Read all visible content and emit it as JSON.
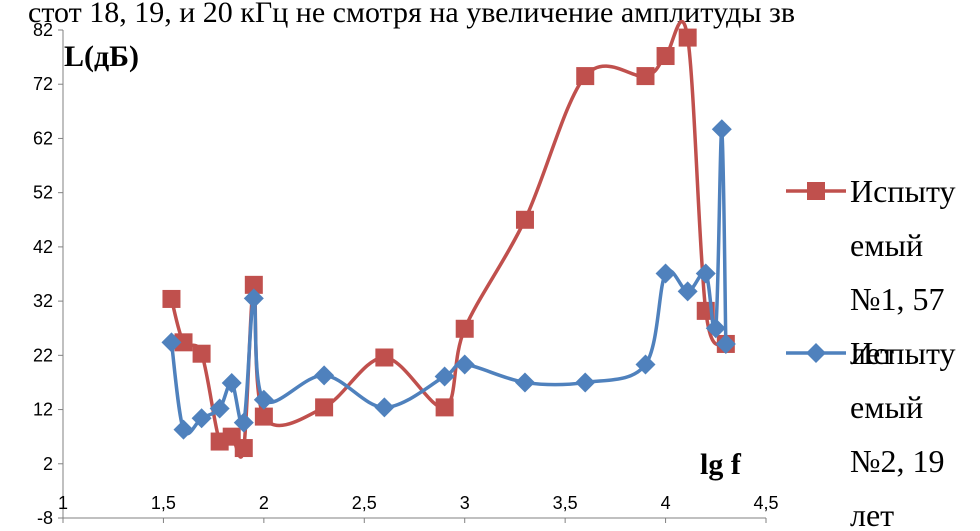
{
  "header_fragment": "стот 18, 19, и 20 кГц  не смотря на увеличение амплитуды зв",
  "chart_data": {
    "type": "line",
    "ylabel": "L(дБ)",
    "xlabel": "lg f",
    "xlim": [
      1,
      4.5
    ],
    "ylim": [
      -8,
      82
    ],
    "x_ticks": [
      1,
      1.5,
      2,
      2.5,
      3,
      3.5,
      4,
      4.5
    ],
    "x_tick_labels": [
      "1",
      "1,5",
      "2",
      "2,5",
      "3",
      "3,5",
      "4",
      "4,5"
    ],
    "y_ticks": [
      -8,
      2,
      12,
      22,
      32,
      42,
      52,
      62,
      72,
      82
    ],
    "y_tick_labels": [
      "-8",
      "2",
      "12",
      "22",
      "32",
      "42",
      "52",
      "62",
      "72",
      "82"
    ],
    "grid": false,
    "smooth": true,
    "legend_position": "right",
    "series": [
      {
        "name": "Испытуемый №1, 57 лет",
        "legend_lines": [
          "Испыту",
          "емый",
          "№1, 57",
          "лет"
        ],
        "color": "#c0504d",
        "marker": "square",
        "x": [
          1.54,
          1.6,
          1.69,
          1.78,
          1.84,
          1.9,
          1.95,
          2.0,
          2.3,
          2.6,
          2.9,
          3.0,
          3.3,
          3.6,
          3.9,
          4.0,
          4.11,
          4.2,
          4.3
        ],
        "y": [
          32.4,
          24.4,
          22.3,
          6.1,
          7.0,
          4.9,
          35.0,
          10.7,
          12.4,
          21.6,
          12.4,
          26.9,
          47.0,
          73.5,
          73.5,
          77.2,
          80.6,
          30.2,
          24.1
        ]
      },
      {
        "name": "Испытуемый №2, 19 лет",
        "legend_lines": [
          "Испыту",
          "емый",
          "№2, 19",
          "лет"
        ],
        "color": "#4f81bd",
        "marker": "diamond",
        "x": [
          1.54,
          1.6,
          1.69,
          1.78,
          1.84,
          1.9,
          1.95,
          2.0,
          2.3,
          2.6,
          2.9,
          3.0,
          3.3,
          3.6,
          3.9,
          4.0,
          4.11,
          4.2,
          4.25,
          4.28,
          4.3
        ],
        "y": [
          24.4,
          8.3,
          10.4,
          12.2,
          16.9,
          9.6,
          32.5,
          13.8,
          18.3,
          12.4,
          18.1,
          20.3,
          17.0,
          17.0,
          20.3,
          37.1,
          33.8,
          37.1,
          27.0,
          63.7,
          24.1
        ]
      }
    ]
  }
}
